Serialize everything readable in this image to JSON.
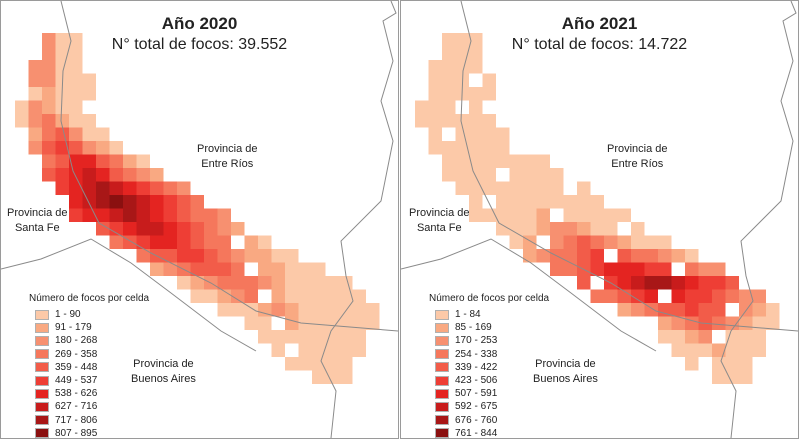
{
  "panels": [
    {
      "year": "Año 2020",
      "total": "N° total de focos: 39.552",
      "labels": {
        "entre_rios": [
          "Provincia de",
          "Entre Ríos"
        ],
        "santa_fe": [
          "Provincia de",
          "Santa Fe"
        ],
        "buenos_aires": [
          "Provincia de",
          "Buenos Aires"
        ]
      },
      "legend_title": "Número de focos por celda",
      "legend": [
        {
          "range": "1 - 90",
          "color": "#fcc9a8"
        },
        {
          "range": "91 - 179",
          "color": "#f9a982"
        },
        {
          "range": "180 - 268",
          "color": "#f79070"
        },
        {
          "range": "269 - 358",
          "color": "#f5775c"
        },
        {
          "range": "359 - 448",
          "color": "#f25c49"
        },
        {
          "range": "449 - 537",
          "color": "#ee3e35"
        },
        {
          "range": "538 - 626",
          "color": "#e42421"
        },
        {
          "range": "627 - 716",
          "color": "#c81c1c"
        },
        {
          "range": "717 - 806",
          "color": "#a81717"
        },
        {
          "range": "807 - 895",
          "color": "#8a1010"
        }
      ]
    },
    {
      "year": "Año 2021",
      "total": "N° total de focos: 14.722",
      "labels": {
        "entre_rios": [
          "Provincia de",
          "Entre Ríos"
        ],
        "santa_fe": [
          "Provincia de",
          "Santa Fe"
        ],
        "buenos_aires": [
          "Provincia de",
          "Buenos Aires"
        ]
      },
      "legend_title": "Número de focos por celda",
      "legend": [
        {
          "range": "1 - 84",
          "color": "#fcc9a8"
        },
        {
          "range": "85 - 169",
          "color": "#f9a982"
        },
        {
          "range": "170 - 253",
          "color": "#f79070"
        },
        {
          "range": "254 - 338",
          "color": "#f5775c"
        },
        {
          "range": "339 - 422",
          "color": "#f25c49"
        },
        {
          "range": "423 - 506",
          "color": "#ee3e35"
        },
        {
          "range": "507 - 591",
          "color": "#e42421"
        },
        {
          "range": "592 - 675",
          "color": "#c81c1c"
        },
        {
          "range": "676 - 760",
          "color": "#a81717"
        },
        {
          "range": "761 - 844",
          "color": "#8a1010"
        }
      ]
    }
  ]
}
